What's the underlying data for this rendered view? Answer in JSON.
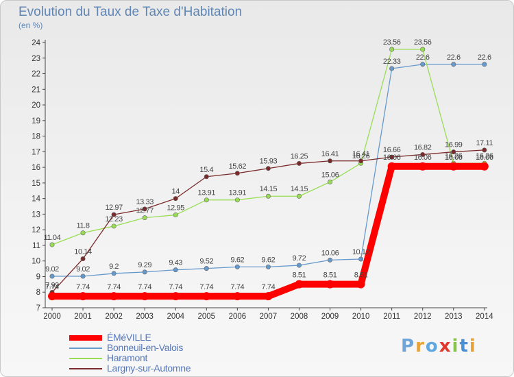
{
  "header": {
    "title": "Evolution du Taux de Taxe d'Habitation",
    "subtitle": "(en %)"
  },
  "logo": {
    "text": "Proxiti",
    "colors": {
      "p": "#6fa4d9",
      "r": "#e8a23a",
      "o": "#5fa8e0",
      "x": "#e0382d",
      "i": "#86c44a",
      "t": "#4a90d6"
    }
  },
  "chart_data": {
    "type": "line",
    "title": "Evolution du Taux de Taxe d'Habitation",
    "subtitle": "(en %)",
    "xlabel": "",
    "ylabel": "",
    "x": [
      "2000",
      "2001",
      "2002",
      "2003",
      "2004",
      "2005",
      "2006",
      "2007",
      "2008",
      "2009",
      "2010",
      "2011",
      "2012",
      "2013",
      "2014"
    ],
    "ylim": [
      7,
      24
    ],
    "yticks": [
      "7",
      "8",
      "9",
      "10",
      "11",
      "12",
      "13",
      "14",
      "15",
      "16",
      "17",
      "18",
      "19",
      "20",
      "21",
      "22",
      "23",
      "24"
    ],
    "grid": false,
    "legend_position": "bottom-left",
    "series": [
      {
        "name": "ÉMéVILLE",
        "color": "#ff0000",
        "highlight": true,
        "values": [
          7.74,
          7.74,
          7.74,
          7.74,
          7.74,
          7.74,
          7.74,
          7.74,
          8.51,
          8.51,
          8.51,
          16.06,
          16.06,
          16.06,
          16.06
        ],
        "labels": [
          "7.74",
          "7.74",
          "7.74",
          "7.74",
          "7.74",
          "7.74",
          "7.74",
          "7.74",
          "8.51",
          "8.51",
          "8.51",
          "16.06",
          "16.06",
          "16.06",
          "16.06"
        ]
      },
      {
        "name": "Bonneuil-en-Valois",
        "color": "#6699cc",
        "values": [
          9.02,
          9.02,
          9.2,
          9.29,
          9.43,
          9.52,
          9.62,
          9.62,
          9.72,
          10.06,
          10.12,
          22.33,
          22.6,
          22.6,
          22.6
        ],
        "labels": [
          "9.02",
          "9.02",
          "9.2",
          "9.29",
          "9.43",
          "9.52",
          "9.62",
          "9.62",
          "9.72",
          "10.06",
          "10.12",
          "22.33",
          "22.6",
          "22.6",
          "22.6"
        ]
      },
      {
        "name": "Haramont",
        "color": "#99dd55",
        "values": [
          11.04,
          11.8,
          12.23,
          12.77,
          12.95,
          13.91,
          13.91,
          14.15,
          14.15,
          15.06,
          16.26,
          23.56,
          23.56,
          16.26,
          16.26
        ],
        "labels": [
          "11.04",
          "11.8",
          "12.23",
          "12.77",
          "12.95",
          "13.91",
          "13.91",
          "14.15",
          "14.15",
          "15.06",
          "16.26",
          "23.56",
          "23.56",
          "16.26",
          "16.26"
        ]
      },
      {
        "name": "Largny-sur-Automne",
        "color": "#7a2a2a",
        "values": [
          7.99,
          10.14,
          12.97,
          13.33,
          14,
          15.4,
          15.62,
          15.93,
          16.25,
          16.41,
          16.41,
          16.66,
          16.82,
          16.99,
          17.11
        ],
        "labels": [
          "7.99",
          "10.14",
          "12.97",
          "13.33",
          "14",
          "15.4",
          "15.62",
          "15.93",
          "16.25",
          "16.41",
          "16.41",
          "16.66",
          "16.82",
          "16.99",
          "17.11"
        ]
      }
    ]
  }
}
